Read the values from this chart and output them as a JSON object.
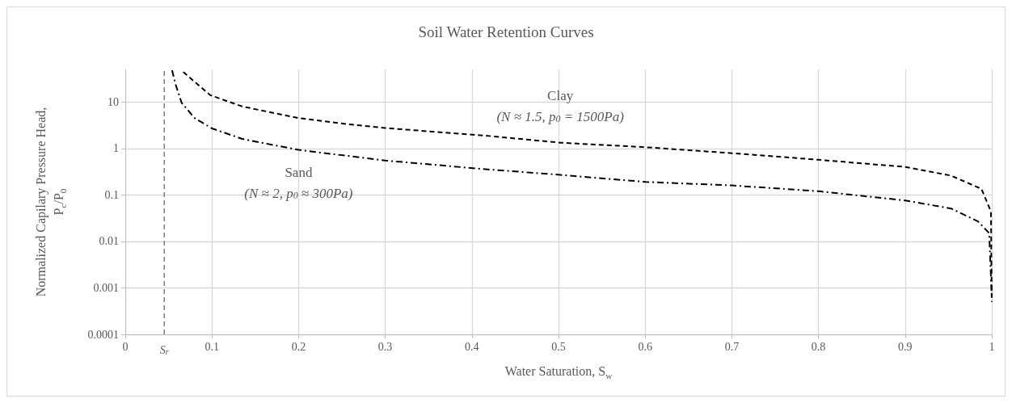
{
  "chart_data": {
    "type": "line",
    "title": "Soil Water Retention Curves",
    "xlabel": "Water Saturation, S$_{w}$",
    "ylabel": "Normalized Capilary Pressure Head,\nP$_{c}$/P$_{0}$",
    "series": [
      {
        "name": "Clay",
        "color": "#000000",
        "line_style": "dashed",
        "x": [
          0.067,
          0.098,
          0.135,
          0.2,
          0.258,
          0.3,
          0.413,
          0.502,
          0.601,
          0.7,
          0.8,
          0.9,
          0.953,
          0.988,
          0.999,
          1
        ],
        "values": [
          44,
          14,
          8,
          4.5,
          3.3,
          2.75,
          1.9,
          1.33,
          1.06,
          0.79,
          0.57,
          0.4,
          0.26,
          0.135,
          0.044,
          0.0005
        ]
      },
      {
        "name": "Sand",
        "color": "#000000",
        "line_style": "dashdot",
        "x": [
          0.054,
          0.058,
          0.065,
          0.08,
          0.1,
          0.135,
          0.2,
          0.3,
          0.413,
          0.502,
          0.601,
          0.7,
          0.8,
          0.9,
          0.953,
          0.984,
          0.997,
          1
        ],
        "values": [
          48,
          24,
          9.6,
          4.5,
          2.7,
          1.6,
          0.93,
          0.55,
          0.36,
          0.27,
          0.19,
          0.16,
          0.12,
          0.076,
          0.051,
          0.027,
          0.015,
          0.0006
        ]
      }
    ],
    "log": "y",
    "xlim": [
      0,
      1
    ],
    "xticks": [
      0,
      0.1,
      0.2,
      0.3,
      0.4,
      0.5,
      0.6,
      0.7,
      0.8,
      0.9,
      1
    ],
    "ylim": [
      0.0001,
      50
    ],
    "yticks": [
      0.0001,
      0.001,
      0.01,
      0.1,
      1,
      10
    ],
    "grid": true,
    "marker": "none",
    "ref_lines": [
      {
        "axis": "x",
        "value": 0.045,
        "label": "S$_{r}$",
        "color": "#7f7f7f",
        "line_style": "dashed"
      }
    ],
    "annotations": [
      "(N ≈ 1.5, p$_{0}$ = 1500Pa)",
      "(N ≈ 2, p$_{0}$ ≈ 300Pa)"
    ]
  }
}
